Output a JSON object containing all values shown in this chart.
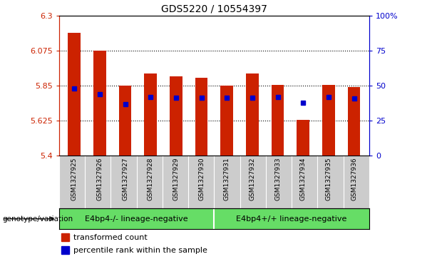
{
  "title": "GDS5220 / 10554397",
  "samples": [
    "GSM1327925",
    "GSM1327926",
    "GSM1327927",
    "GSM1327928",
    "GSM1327929",
    "GSM1327930",
    "GSM1327931",
    "GSM1327932",
    "GSM1327933",
    "GSM1327934",
    "GSM1327935",
    "GSM1327936"
  ],
  "bar_values": [
    6.19,
    6.075,
    5.85,
    5.925,
    5.91,
    5.9,
    5.85,
    5.925,
    5.855,
    5.63,
    5.855,
    5.84
  ],
  "percentile_values": [
    5.83,
    5.795,
    5.73,
    5.775,
    5.77,
    5.77,
    5.77,
    5.77,
    5.775,
    5.74,
    5.775,
    5.765
  ],
  "ymin": 5.4,
  "ymax": 6.3,
  "yticks": [
    5.4,
    5.625,
    5.85,
    6.075,
    6.3
  ],
  "ytick_labels": [
    "5.4",
    "5.625",
    "5.85",
    "6.075",
    "6.3"
  ],
  "right_yticks": [
    0,
    25,
    50,
    75,
    100
  ],
  "right_ytick_labels": [
    "0",
    "25",
    "50",
    "75",
    "100%"
  ],
  "bar_color": "#cc2200",
  "percentile_color": "#0000cc",
  "group1_label": "E4bp4-/- lineage-negative",
  "group2_label": "E4bp4+/+ lineage-negative",
  "group_bg_color": "#66dd66",
  "legend_transformed": "transformed count",
  "legend_percentile": "percentile rank within the sample",
  "genotype_label": "genotype/variation",
  "grid_color": "#000000",
  "label_bg_color": "#cccccc",
  "bar_width": 0.5
}
